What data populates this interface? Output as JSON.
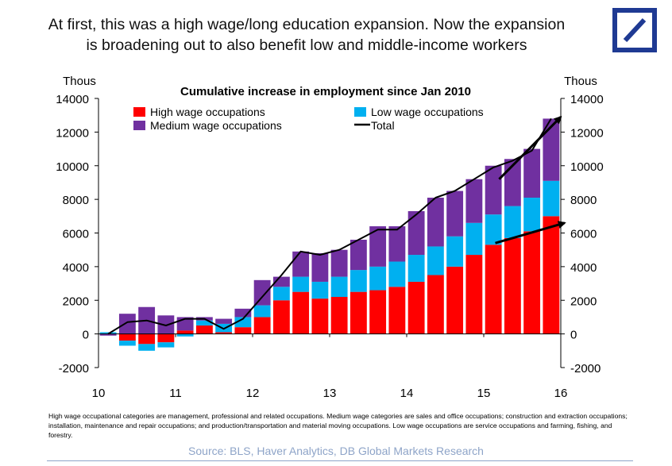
{
  "headline": {
    "line1": "At first, this was a high wage/long education expansion. Now the expansion",
    "line2": "is broadening out to also benefit low and middle-income workers"
  },
  "logo": {
    "name": "deutsche-bank-logo",
    "color": "#1f3a93"
  },
  "footnote": "High wage occupational categories are management, professional and related occupations. Medium wage categories are sales and office occupations; construction and extraction occupations; installation, maintenance and repair occupations; and production/transportation and material moving occupations. Low wage occupations are service occupations and farming, fishing, and forestry.",
  "source": "Source: BLS, Haver Analytics, DB Global Markets Research",
  "chart_data": {
    "type": "bar",
    "stacked": true,
    "title": "Cumulative increase in employment since Jan 2010",
    "left_unit": "Thous",
    "right_unit": "Thous",
    "ylim": [
      -2000,
      14000
    ],
    "yticks": [
      -2000,
      0,
      2000,
      4000,
      6000,
      8000,
      10000,
      12000,
      14000
    ],
    "xlim": [
      10,
      16
    ],
    "xticks": [
      "10",
      "11",
      "12",
      "13",
      "14",
      "15",
      "16"
    ],
    "grid": false,
    "legend_position": "top-left",
    "colors": {
      "high": "#ff0000",
      "low": "#00b0f0",
      "medium": "#7030a0",
      "total": "#000000"
    },
    "legend": {
      "high": "High wage occupations",
      "low": "Low wage occupations",
      "medium": "Medium wage occupations",
      "total": "Total"
    },
    "periods": [
      "2010-Q1",
      "2010-Q2",
      "2010-Q3",
      "2010-Q4",
      "2011-Q1",
      "2011-Q2",
      "2011-Q3",
      "2011-Q4",
      "2012-Q1",
      "2012-Q2",
      "2012-Q3",
      "2012-Q4",
      "2013-Q1",
      "2013-Q2",
      "2013-Q3",
      "2013-Q4",
      "2014-Q1",
      "2014-Q2",
      "2014-Q3",
      "2014-Q4",
      "2015-Q1",
      "2015-Q2",
      "2015-Q3",
      "2015-Q4"
    ],
    "series": [
      {
        "name": "High wage occupations",
        "key": "high",
        "values": [
          0,
          -400,
          -600,
          -500,
          200,
          500,
          100,
          400,
          1000,
          2000,
          2500,
          2100,
          2200,
          2500,
          2600,
          2800,
          3100,
          3500,
          4000,
          4700,
          5300,
          5700,
          6100,
          7000
        ]
      },
      {
        "name": "Low wage occupations",
        "key": "low",
        "values": [
          100,
          -300,
          -400,
          -300,
          -150,
          300,
          500,
          600,
          700,
          800,
          900,
          1000,
          1200,
          1300,
          1400,
          1500,
          1600,
          1700,
          1800,
          1900,
          1800,
          1900,
          2000,
          2100
        ]
      },
      {
        "name": "Medium wage occupations",
        "key": "medium",
        "values": [
          -100,
          1200,
          1600,
          1100,
          800,
          200,
          300,
          500,
          1500,
          600,
          1500,
          1700,
          1600,
          1800,
          2400,
          2100,
          2600,
          2900,
          2700,
          2600,
          2900,
          2800,
          2900,
          3700
        ]
      }
    ],
    "total": [
      0,
      700,
      800,
      500,
      900,
      900,
      300,
      900,
      2200,
      3500,
      4900,
      4700,
      5000,
      5600,
      6200,
      6200,
      7100,
      8100,
      8500,
      9200,
      9900,
      10300,
      10900,
      12800
    ],
    "annotations": [
      {
        "type": "arrow",
        "from": {
          "x": 15.2,
          "y": 9200
        },
        "to": {
          "x": 16.0,
          "y": 12900
        }
      },
      {
        "type": "arrow",
        "from": {
          "x": 15.15,
          "y": 5400
        },
        "to": {
          "x": 16.05,
          "y": 6600
        }
      }
    ]
  }
}
